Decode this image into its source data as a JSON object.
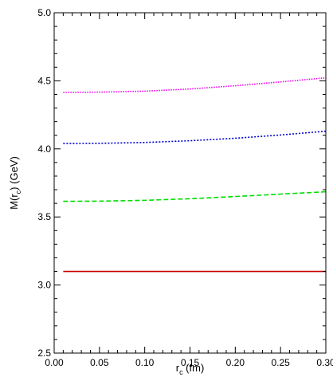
{
  "chart_data": {
    "type": "line",
    "title": "",
    "xlabel": {
      "main": "r",
      "sub": "c",
      "suffix": " (fm)"
    },
    "ylabel": {
      "prefix": "M(r",
      "sub": "c",
      "suffix": ") (GeV)"
    },
    "xlim": [
      0.0,
      0.3
    ],
    "ylim": [
      2.5,
      5.0
    ],
    "x_ticks": [
      "0.00",
      "0.05",
      "0.10",
      "0.15",
      "0.20",
      "0.25",
      "0.30"
    ],
    "y_ticks": [
      "2.5",
      "3.0",
      "3.5",
      "4.0",
      "4.5",
      "5.0"
    ],
    "grid": false,
    "legend": "none",
    "series": [
      {
        "color": "#cc0000",
        "style": "solid",
        "x": [
          0.01,
          0.05,
          0.1,
          0.15,
          0.2,
          0.25,
          0.3
        ],
        "y": [
          3.1,
          3.1,
          3.1,
          3.1,
          3.1,
          3.1,
          3.1
        ]
      },
      {
        "color": "#00dd00",
        "style": "dashed",
        "x": [
          0.01,
          0.05,
          0.1,
          0.15,
          0.2,
          0.25,
          0.3
        ],
        "y": [
          3.615,
          3.616,
          3.622,
          3.634,
          3.65,
          3.668,
          3.685
        ]
      },
      {
        "color": "#0000cc",
        "style": "dotted",
        "x": [
          0.01,
          0.05,
          0.1,
          0.15,
          0.2,
          0.25,
          0.3
        ],
        "y": [
          4.04,
          4.041,
          4.047,
          4.06,
          4.078,
          4.102,
          4.13
        ]
      },
      {
        "color": "#ee00ee",
        "style": "densedot",
        "x": [
          0.01,
          0.05,
          0.1,
          0.15,
          0.2,
          0.25,
          0.3
        ],
        "y": [
          4.415,
          4.417,
          4.424,
          4.44,
          4.464,
          4.492,
          4.522
        ]
      }
    ]
  }
}
